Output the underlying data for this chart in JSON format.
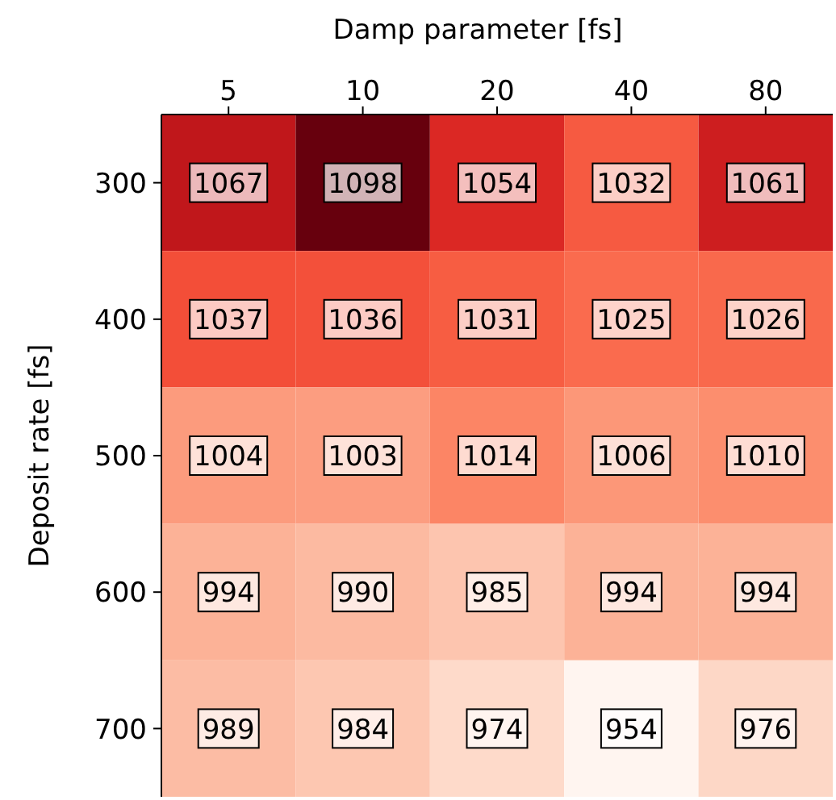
{
  "chart_data": {
    "type": "heatmap",
    "xlabel": "Damp parameter [fs]",
    "ylabel": "Deposit rate [fs]",
    "categories": [
      "5",
      "10",
      "20",
      "40",
      "80"
    ],
    "y_categories": [
      "300",
      "400",
      "500",
      "600",
      "700"
    ],
    "cells": [
      [
        1067,
        1098,
        1054,
        1032,
        1061
      ],
      [
        1037,
        1036,
        1031,
        1025,
        1026
      ],
      [
        1004,
        1003,
        1014,
        1006,
        1010
      ],
      [
        994,
        990,
        985,
        994,
        994
      ],
      [
        989,
        984,
        974,
        954,
        976
      ]
    ],
    "data_labels": true
  }
}
